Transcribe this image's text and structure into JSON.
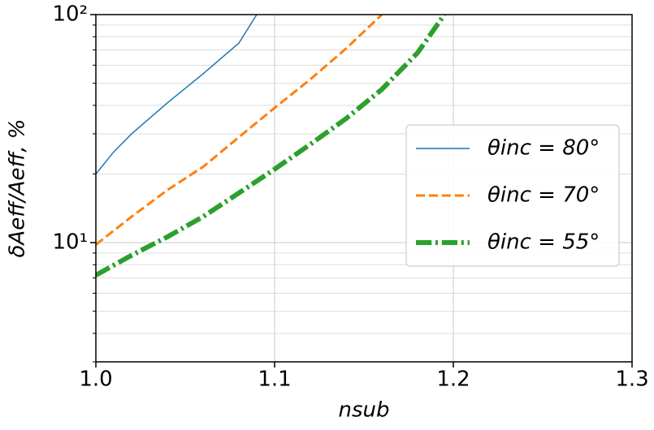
{
  "chart_data": {
    "type": "line",
    "xlabel": "nsub",
    "ylabel": "δAeff/Aeff, %",
    "xlim": [
      1.0,
      1.3
    ],
    "xticks": [
      {
        "value": 1.0,
        "label": "1.0"
      },
      1.1,
      1.2,
      1.3
    ],
    "ylim": [
      3,
      100
    ],
    "yscale": "log",
    "yticks": [
      {
        "value": 10,
        "label": "10¹"
      },
      {
        "value": 100,
        "label": "10²"
      }
    ],
    "yminorticks": [
      3,
      4,
      5,
      6,
      7,
      8,
      9,
      20,
      30,
      40,
      50,
      60,
      70,
      80,
      90
    ],
    "grid": true,
    "legend": "center right",
    "series": [
      {
        "name": "θinc = 80°",
        "color": "#1f77b4",
        "linestyle": "solid",
        "linewidth": 1.5,
        "x": [
          1.0,
          1.01,
          1.02,
          1.04,
          1.06,
          1.08,
          1.09
        ],
        "values": [
          20,
          25,
          30,
          41,
          55,
          75,
          100
        ]
      },
      {
        "name": "θinc = 70°",
        "color": "#ff7f0e",
        "linestyle": "dashed",
        "linewidth": 3,
        "x": [
          1.0,
          1.02,
          1.04,
          1.06,
          1.08,
          1.1,
          1.12,
          1.14,
          1.16
        ],
        "values": [
          9.8,
          13,
          17,
          21.5,
          29,
          39,
          52,
          71,
          100
        ]
      },
      {
        "name": "θinc = 55°",
        "color": "#2ca02c",
        "linestyle": "dashdot",
        "linewidth": 6,
        "x": [
          1.0,
          1.02,
          1.04,
          1.06,
          1.08,
          1.1,
          1.12,
          1.14,
          1.16,
          1.18,
          1.195
        ],
        "values": [
          7.2,
          8.8,
          10.6,
          13,
          16.5,
          21,
          27,
          35,
          47,
          68,
          100
        ]
      }
    ]
  }
}
